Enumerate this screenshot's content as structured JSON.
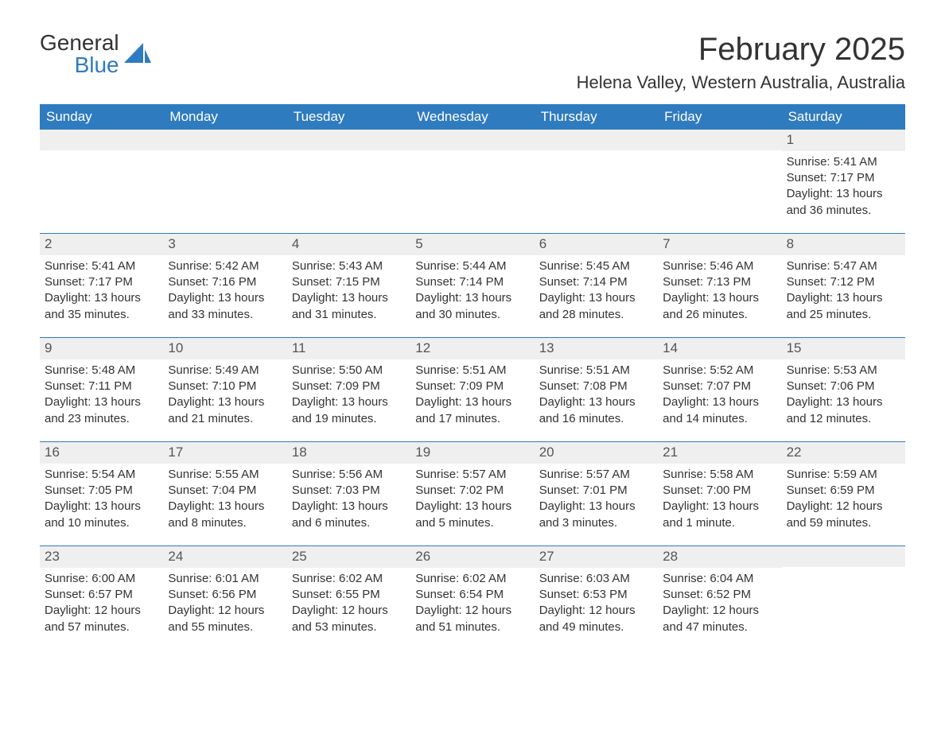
{
  "logo": {
    "word1": "General",
    "word2": "Blue",
    "accent_color": "#2f7bbf"
  },
  "title": "February 2025",
  "location": "Helena Valley, Western Australia, Australia",
  "colors": {
    "header_bg": "#2f7bbf",
    "header_text": "#ffffff",
    "daynum_bg": "#efefef",
    "body_text": "#333333",
    "page_bg": "#ffffff",
    "week_border": "#2f7bbf"
  },
  "day_names": [
    "Sunday",
    "Monday",
    "Tuesday",
    "Wednesday",
    "Thursday",
    "Friday",
    "Saturday"
  ],
  "weeks": [
    [
      {
        "empty": true
      },
      {
        "empty": true
      },
      {
        "empty": true
      },
      {
        "empty": true
      },
      {
        "empty": true
      },
      {
        "empty": true
      },
      {
        "day": "1",
        "sunrise": "Sunrise: 5:41 AM",
        "sunset": "Sunset: 7:17 PM",
        "daylight": "Daylight: 13 hours and 36 minutes."
      }
    ],
    [
      {
        "day": "2",
        "sunrise": "Sunrise: 5:41 AM",
        "sunset": "Sunset: 7:17 PM",
        "daylight": "Daylight: 13 hours and 35 minutes."
      },
      {
        "day": "3",
        "sunrise": "Sunrise: 5:42 AM",
        "sunset": "Sunset: 7:16 PM",
        "daylight": "Daylight: 13 hours and 33 minutes."
      },
      {
        "day": "4",
        "sunrise": "Sunrise: 5:43 AM",
        "sunset": "Sunset: 7:15 PM",
        "daylight": "Daylight: 13 hours and 31 minutes."
      },
      {
        "day": "5",
        "sunrise": "Sunrise: 5:44 AM",
        "sunset": "Sunset: 7:14 PM",
        "daylight": "Daylight: 13 hours and 30 minutes."
      },
      {
        "day": "6",
        "sunrise": "Sunrise: 5:45 AM",
        "sunset": "Sunset: 7:14 PM",
        "daylight": "Daylight: 13 hours and 28 minutes."
      },
      {
        "day": "7",
        "sunrise": "Sunrise: 5:46 AM",
        "sunset": "Sunset: 7:13 PM",
        "daylight": "Daylight: 13 hours and 26 minutes."
      },
      {
        "day": "8",
        "sunrise": "Sunrise: 5:47 AM",
        "sunset": "Sunset: 7:12 PM",
        "daylight": "Daylight: 13 hours and 25 minutes."
      }
    ],
    [
      {
        "day": "9",
        "sunrise": "Sunrise: 5:48 AM",
        "sunset": "Sunset: 7:11 PM",
        "daylight": "Daylight: 13 hours and 23 minutes."
      },
      {
        "day": "10",
        "sunrise": "Sunrise: 5:49 AM",
        "sunset": "Sunset: 7:10 PM",
        "daylight": "Daylight: 13 hours and 21 minutes."
      },
      {
        "day": "11",
        "sunrise": "Sunrise: 5:50 AM",
        "sunset": "Sunset: 7:09 PM",
        "daylight": "Daylight: 13 hours and 19 minutes."
      },
      {
        "day": "12",
        "sunrise": "Sunrise: 5:51 AM",
        "sunset": "Sunset: 7:09 PM",
        "daylight": "Daylight: 13 hours and 17 minutes."
      },
      {
        "day": "13",
        "sunrise": "Sunrise: 5:51 AM",
        "sunset": "Sunset: 7:08 PM",
        "daylight": "Daylight: 13 hours and 16 minutes."
      },
      {
        "day": "14",
        "sunrise": "Sunrise: 5:52 AM",
        "sunset": "Sunset: 7:07 PM",
        "daylight": "Daylight: 13 hours and 14 minutes."
      },
      {
        "day": "15",
        "sunrise": "Sunrise: 5:53 AM",
        "sunset": "Sunset: 7:06 PM",
        "daylight": "Daylight: 13 hours and 12 minutes."
      }
    ],
    [
      {
        "day": "16",
        "sunrise": "Sunrise: 5:54 AM",
        "sunset": "Sunset: 7:05 PM",
        "daylight": "Daylight: 13 hours and 10 minutes."
      },
      {
        "day": "17",
        "sunrise": "Sunrise: 5:55 AM",
        "sunset": "Sunset: 7:04 PM",
        "daylight": "Daylight: 13 hours and 8 minutes."
      },
      {
        "day": "18",
        "sunrise": "Sunrise: 5:56 AM",
        "sunset": "Sunset: 7:03 PM",
        "daylight": "Daylight: 13 hours and 6 minutes."
      },
      {
        "day": "19",
        "sunrise": "Sunrise: 5:57 AM",
        "sunset": "Sunset: 7:02 PM",
        "daylight": "Daylight: 13 hours and 5 minutes."
      },
      {
        "day": "20",
        "sunrise": "Sunrise: 5:57 AM",
        "sunset": "Sunset: 7:01 PM",
        "daylight": "Daylight: 13 hours and 3 minutes."
      },
      {
        "day": "21",
        "sunrise": "Sunrise: 5:58 AM",
        "sunset": "Sunset: 7:00 PM",
        "daylight": "Daylight: 13 hours and 1 minute."
      },
      {
        "day": "22",
        "sunrise": "Sunrise: 5:59 AM",
        "sunset": "Sunset: 6:59 PM",
        "daylight": "Daylight: 12 hours and 59 minutes."
      }
    ],
    [
      {
        "day": "23",
        "sunrise": "Sunrise: 6:00 AM",
        "sunset": "Sunset: 6:57 PM",
        "daylight": "Daylight: 12 hours and 57 minutes."
      },
      {
        "day": "24",
        "sunrise": "Sunrise: 6:01 AM",
        "sunset": "Sunset: 6:56 PM",
        "daylight": "Daylight: 12 hours and 55 minutes."
      },
      {
        "day": "25",
        "sunrise": "Sunrise: 6:02 AM",
        "sunset": "Sunset: 6:55 PM",
        "daylight": "Daylight: 12 hours and 53 minutes."
      },
      {
        "day": "26",
        "sunrise": "Sunrise: 6:02 AM",
        "sunset": "Sunset: 6:54 PM",
        "daylight": "Daylight: 12 hours and 51 minutes."
      },
      {
        "day": "27",
        "sunrise": "Sunrise: 6:03 AM",
        "sunset": "Sunset: 6:53 PM",
        "daylight": "Daylight: 12 hours and 49 minutes."
      },
      {
        "day": "28",
        "sunrise": "Sunrise: 6:04 AM",
        "sunset": "Sunset: 6:52 PM",
        "daylight": "Daylight: 12 hours and 47 minutes."
      },
      {
        "empty": true
      }
    ]
  ]
}
